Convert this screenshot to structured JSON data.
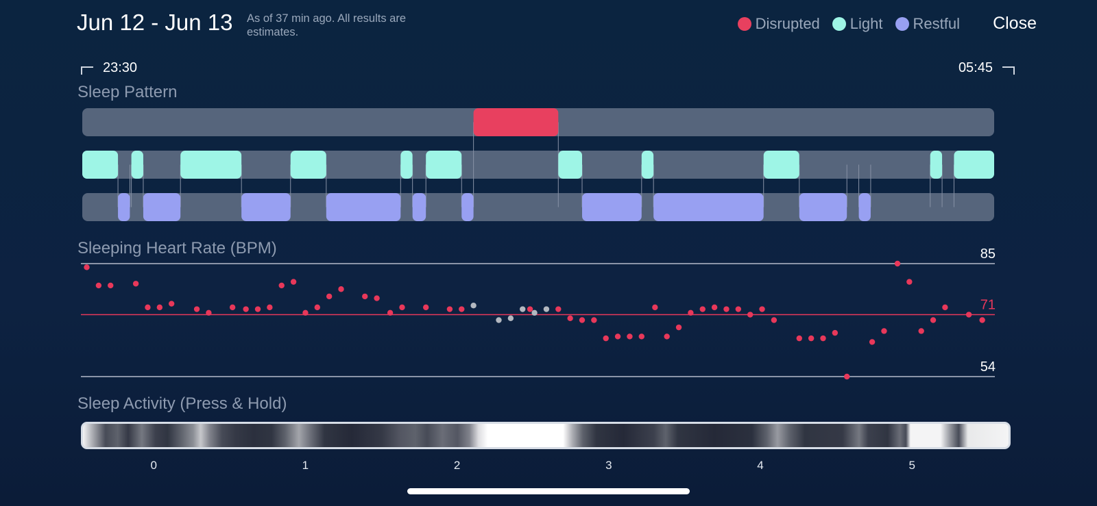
{
  "header": {
    "date_range": "Jun 12 - Jun 13",
    "as_of": "As of 37 min ago. All results are estimates.",
    "close_label": "Close"
  },
  "legend": [
    {
      "label": "Disrupted",
      "color": "#e8405f"
    },
    {
      "label": "Light",
      "color": "#9ef5e6"
    },
    {
      "label": "Restful",
      "color": "#98a0f2"
    }
  ],
  "times": {
    "start": "23:30",
    "end": "05:45"
  },
  "sections": {
    "pattern": "Sleep Pattern",
    "heart_rate": "Sleeping Heart Rate (BPM)",
    "activity": "Sleep Activity (Press & Hold)"
  },
  "colors": {
    "disrupted": "#e8405f",
    "light": "#9ef5e6",
    "restful": "#98a0f2",
    "track": "#56657c",
    "hr_point": "#e8385a",
    "hr_point_gap": "#b3b8c0"
  },
  "chart_data": [
    {
      "type": "timeline",
      "title": "Sleep Pattern",
      "x_unit": "hours",
      "xlim": [
        -0.48,
        5.65
      ],
      "rows": [
        {
          "name": "Disrupted",
          "segments": [
            [
              2.15,
              2.72
            ]
          ]
        },
        {
          "name": "Light",
          "segments": [
            [
              -0.48,
              -0.24
            ],
            [
              -0.15,
              -0.07
            ],
            [
              0.18,
              0.59
            ],
            [
              0.92,
              1.16
            ],
            [
              1.66,
              1.74
            ],
            [
              1.83,
              2.07
            ],
            [
              2.72,
              2.88
            ],
            [
              3.28,
              3.36
            ],
            [
              4.1,
              4.34
            ],
            [
              5.22,
              5.3
            ],
            [
              5.38,
              5.65
            ]
          ]
        },
        {
          "name": "Restful",
          "segments": [
            [
              -0.24,
              -0.16
            ],
            [
              -0.07,
              0.18
            ],
            [
              0.59,
              0.92
            ],
            [
              1.16,
              1.66
            ],
            [
              1.74,
              1.83
            ],
            [
              2.07,
              2.15
            ],
            [
              2.88,
              3.28
            ],
            [
              3.36,
              4.1
            ],
            [
              4.34,
              4.66
            ],
            [
              4.74,
              4.82
            ]
          ]
        }
      ]
    },
    {
      "type": "scatter",
      "title": "Sleeping Heart Rate (BPM)",
      "x_unit": "hours",
      "xlim": [
        -0.48,
        5.65
      ],
      "ylim": [
        54,
        85
      ],
      "reference_lines": [
        {
          "value": 85,
          "label": "85"
        },
        {
          "value": 71,
          "label": "71"
        },
        {
          "value": 54,
          "label": "54"
        }
      ],
      "points": [
        [
          -0.45,
          84
        ],
        [
          -0.37,
          79
        ],
        [
          -0.29,
          79
        ],
        [
          -0.12,
          79.5
        ],
        [
          -0.04,
          73
        ],
        [
          0.04,
          73
        ],
        [
          0.12,
          74
        ],
        [
          0.29,
          72.5
        ],
        [
          0.37,
          71.5
        ],
        [
          0.53,
          73
        ],
        [
          0.62,
          72.5
        ],
        [
          0.7,
          72.5
        ],
        [
          0.78,
          73
        ],
        [
          0.86,
          79
        ],
        [
          0.94,
          80
        ],
        [
          1.02,
          71.5
        ],
        [
          1.1,
          73
        ],
        [
          1.18,
          76
        ],
        [
          1.26,
          78
        ],
        [
          1.42,
          76
        ],
        [
          1.5,
          75.5
        ],
        [
          1.59,
          71.5
        ],
        [
          1.67,
          73
        ],
        [
          1.83,
          73
        ],
        [
          1.99,
          72.5
        ],
        [
          2.07,
          72.5
        ],
        [
          2.53,
          72.5
        ],
        [
          2.72,
          72.5
        ],
        [
          2.8,
          70
        ],
        [
          2.88,
          69.5
        ],
        [
          2.96,
          69.5
        ],
        [
          3.04,
          64.5
        ],
        [
          3.12,
          65
        ],
        [
          3.2,
          65
        ],
        [
          3.28,
          65
        ],
        [
          3.37,
          73
        ],
        [
          3.45,
          65
        ],
        [
          3.53,
          67.5
        ],
        [
          3.61,
          71.5
        ],
        [
          3.69,
          72.5
        ],
        [
          3.77,
          73
        ],
        [
          3.85,
          72.5
        ],
        [
          3.93,
          72.5
        ],
        [
          4.01,
          71
        ],
        [
          4.09,
          72.5
        ],
        [
          4.17,
          69.5
        ],
        [
          4.34,
          64.5
        ],
        [
          4.42,
          64.5
        ],
        [
          4.5,
          64.5
        ],
        [
          4.58,
          66
        ],
        [
          4.66,
          54
        ],
        [
          4.83,
          63.5
        ],
        [
          4.91,
          66.5
        ],
        [
          5.0,
          85
        ],
        [
          5.08,
          80
        ],
        [
          5.16,
          66.5
        ],
        [
          5.24,
          69.5
        ],
        [
          5.32,
          73
        ],
        [
          5.48,
          71
        ],
        [
          5.57,
          69.5
        ]
      ],
      "gap_points": [
        [
          2.15,
          73.5
        ],
        [
          2.32,
          69.5
        ],
        [
          2.4,
          70
        ],
        [
          2.48,
          72.5
        ],
        [
          2.56,
          71.5
        ],
        [
          2.64,
          72.5
        ]
      ]
    },
    {
      "type": "heatmap",
      "title": "Sleep Activity (Press & Hold)",
      "x_unit": "hours",
      "xlim": [
        -0.48,
        5.65
      ],
      "x_ticks": [
        0,
        1,
        2,
        3,
        4,
        5
      ],
      "intensity": [
        [
          -0.48,
          0.95
        ],
        [
          -0.4,
          0.55
        ],
        [
          -0.33,
          0.2
        ],
        [
          -0.25,
          0.3
        ],
        [
          -0.18,
          0.12
        ],
        [
          -0.09,
          0.4
        ],
        [
          0.0,
          0.15
        ],
        [
          0.08,
          0.1
        ],
        [
          0.17,
          0.3
        ],
        [
          0.25,
          0.5
        ],
        [
          0.3,
          0.75
        ],
        [
          0.36,
          0.45
        ],
        [
          0.44,
          0.2
        ],
        [
          0.53,
          0.12
        ],
        [
          0.65,
          0.08
        ],
        [
          0.77,
          0.1
        ],
        [
          0.86,
          0.3
        ],
        [
          0.95,
          0.6
        ],
        [
          1.03,
          0.35
        ],
        [
          1.12,
          0.1
        ],
        [
          1.3,
          0.05
        ],
        [
          1.5,
          0.12
        ],
        [
          1.62,
          0.25
        ],
        [
          1.72,
          0.3
        ],
        [
          1.8,
          0.2
        ],
        [
          1.9,
          0.35
        ],
        [
          2.0,
          0.25
        ],
        [
          2.08,
          0.45
        ],
        [
          2.14,
          0.85
        ],
        [
          2.2,
          1.0
        ],
        [
          2.7,
          1.0
        ],
        [
          2.76,
          0.65
        ],
        [
          2.83,
          0.3
        ],
        [
          2.92,
          0.1
        ],
        [
          3.1,
          0.05
        ],
        [
          3.3,
          0.15
        ],
        [
          3.38,
          0.3
        ],
        [
          3.46,
          0.1
        ],
        [
          3.7,
          0.05
        ],
        [
          3.95,
          0.08
        ],
        [
          4.05,
          0.3
        ],
        [
          4.12,
          0.55
        ],
        [
          4.2,
          0.3
        ],
        [
          4.3,
          0.1
        ],
        [
          4.55,
          0.12
        ],
        [
          4.66,
          0.4
        ],
        [
          4.72,
          0.15
        ],
        [
          4.85,
          0.1
        ],
        [
          4.93,
          0.35
        ],
        [
          4.97,
          0.2
        ],
        [
          5.0,
          0.95
        ],
        [
          5.2,
          0.95
        ],
        [
          5.26,
          0.55
        ],
        [
          5.32,
          0.2
        ],
        [
          5.38,
          0.9
        ],
        [
          5.65,
          0.95
        ]
      ]
    }
  ]
}
